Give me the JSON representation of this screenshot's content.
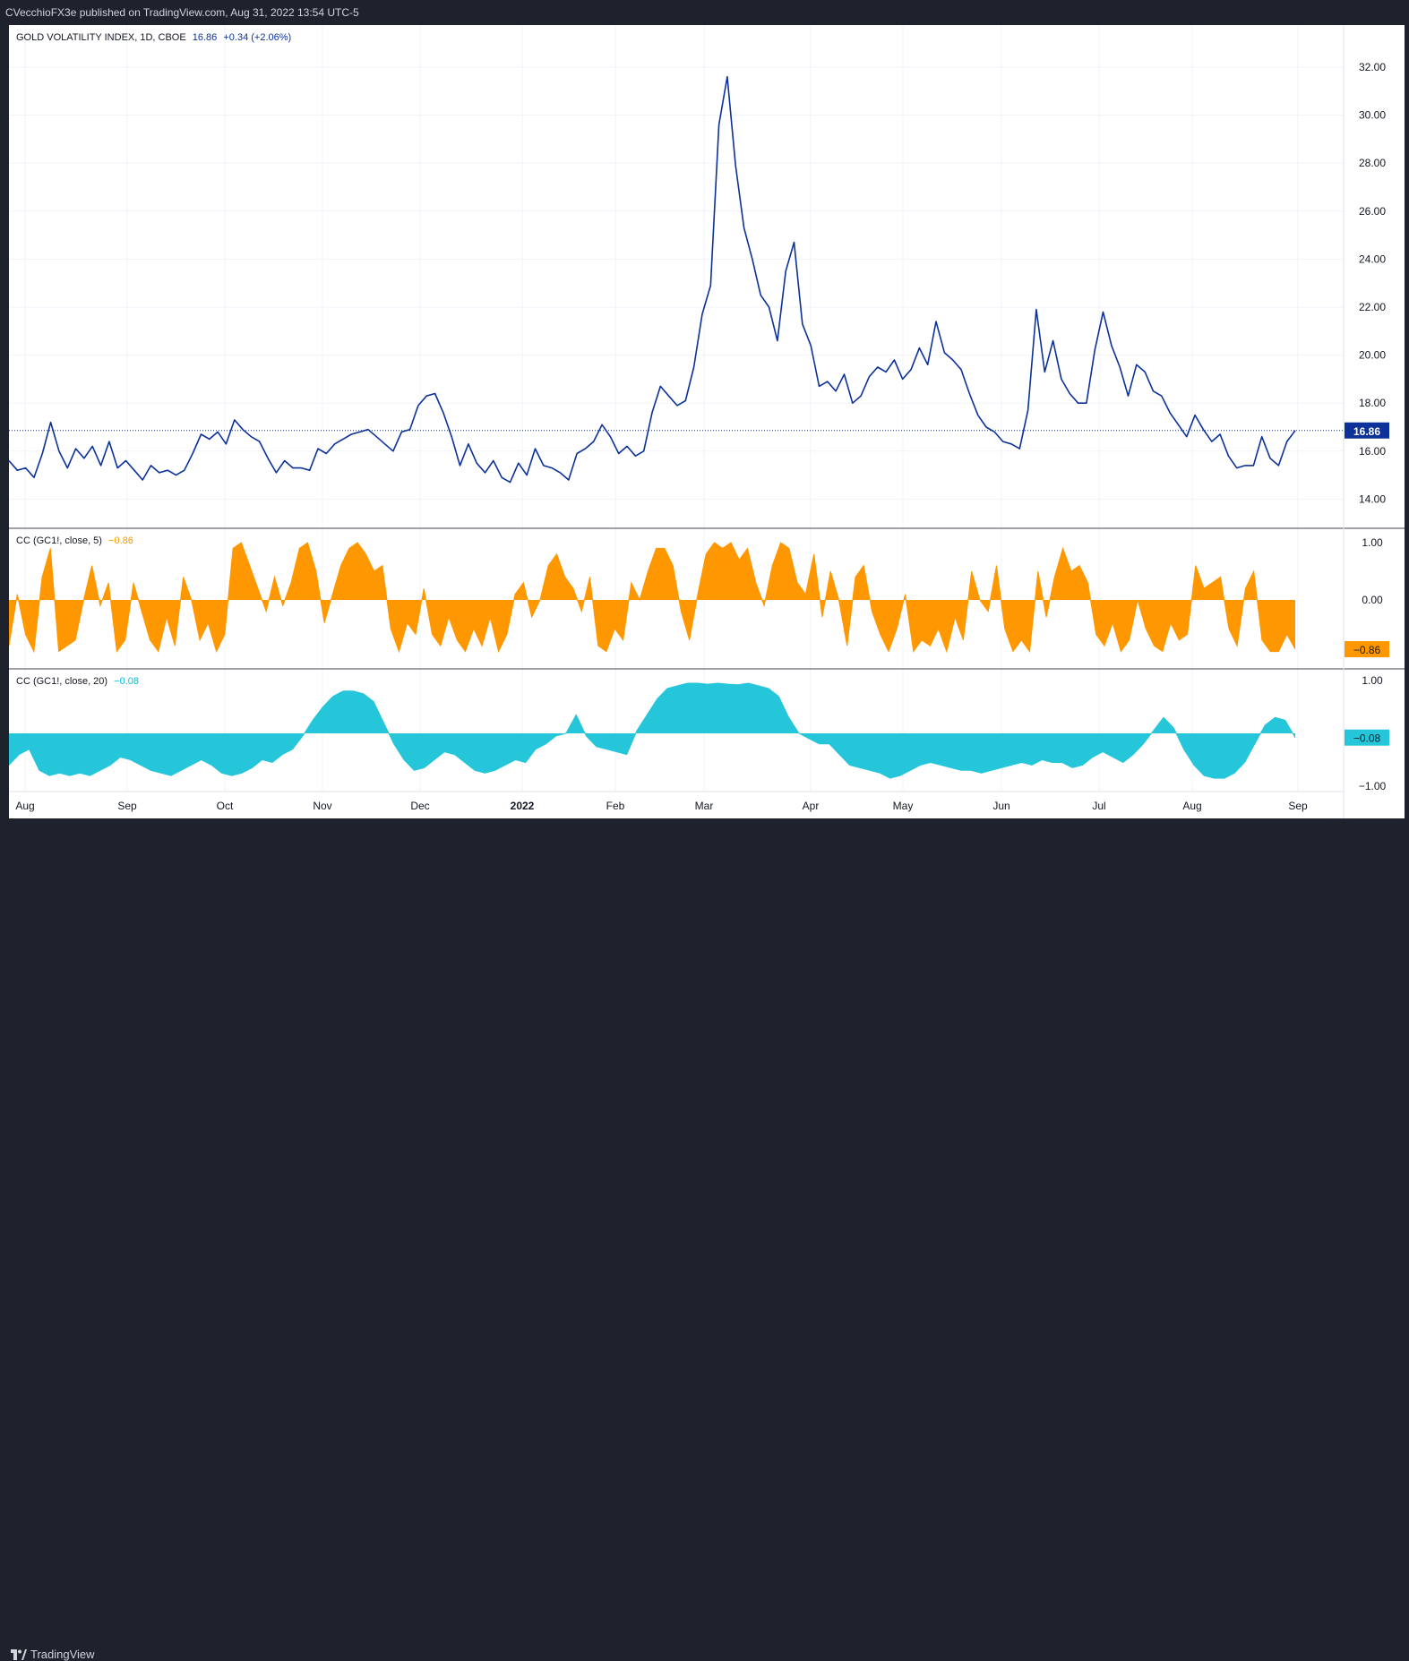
{
  "header": {
    "published": "CVecchioFX3e published on TradingView.com, Aug 31, 2022 13:54 UTC-5"
  },
  "footer": {
    "brand": "TradingView"
  },
  "colors": {
    "price": "#0c3299",
    "cc5": "#ff9800",
    "cc20": "#26c6da",
    "grid": "#f0f3fa",
    "background": "#ffffff"
  },
  "main_legend": {
    "name": "GOLD VOLATILITY INDEX, 1D, CBOE",
    "last": "16.86",
    "change": "+0.34 (+2.06%)"
  },
  "cc5_legend": {
    "name": "CC (GC1!, close, 5)",
    "value": "−0.86"
  },
  "cc20_legend": {
    "name": "CC (GC1!, close, 20)",
    "value": "−0.08"
  },
  "chart_data": [
    {
      "type": "line",
      "title": "GOLD VOLATILITY INDEX, 1D, CBOE",
      "ylim": [
        13,
        33
      ],
      "yticks": [
        "32.00",
        "30.00",
        "28.00",
        "26.00",
        "24.00",
        "22.00",
        "20.00",
        "18.00",
        "16.00",
        "14.00"
      ],
      "last_value_label": "16.86",
      "x_labels": [
        "Aug",
        "Sep",
        "Oct",
        "Nov",
        "Dec",
        "2022",
        "Feb",
        "Mar",
        "Apr",
        "May",
        "Jun",
        "Jul",
        "Aug",
        "Sep"
      ],
      "series": [
        {
          "values": [
            15.6,
            15.2,
            15.3,
            14.9,
            15.9,
            17.2,
            16.0,
            15.3,
            16.1,
            15.7,
            16.2,
            15.4,
            16.4,
            15.3,
            15.6,
            15.2,
            14.8,
            15.4,
            15.1,
            15.2,
            15.0,
            15.2,
            15.9,
            16.7,
            16.5,
            16.8,
            16.3,
            17.3,
            16.9,
            16.6,
            16.4,
            15.7,
            15.1,
            15.6,
            15.3,
            15.3,
            15.2,
            16.1,
            15.9,
            16.3,
            16.5,
            16.7,
            16.8,
            16.9,
            16.6,
            16.3,
            16.0,
            16.8,
            16.9,
            17.9,
            18.3,
            18.4,
            17.6,
            16.6,
            15.4,
            16.3,
            15.5,
            15.1,
            15.6,
            14.9,
            14.7,
            15.5,
            15.0,
            16.1,
            15.4,
            15.3,
            15.1,
            14.8,
            15.9,
            16.1,
            16.4,
            17.1,
            16.6,
            15.9,
            16.2,
            15.8,
            16.0,
            17.6,
            18.7,
            18.3,
            17.9,
            18.1,
            19.5,
            21.7,
            22.9,
            29.6,
            31.6,
            27.9,
            25.3,
            24.0,
            22.5,
            22.0,
            20.6,
            23.5,
            24.7,
            21.3,
            20.4,
            18.7,
            18.9,
            18.5,
            19.2,
            18.0,
            18.3,
            19.1,
            19.5,
            19.3,
            19.8,
            19.0,
            19.4,
            20.3,
            19.6,
            21.4,
            20.1,
            19.8,
            19.4,
            18.4,
            17.5,
            17.0,
            16.8,
            16.4,
            16.3,
            16.1,
            17.7,
            21.9,
            19.3,
            20.6,
            19.0,
            18.4,
            18.0,
            18.0,
            20.2,
            21.8,
            20.4,
            19.5,
            18.3,
            19.6,
            19.3,
            18.5,
            18.3,
            17.6,
            17.1,
            16.6,
            17.5,
            16.9,
            16.4,
            16.7,
            15.8,
            15.3,
            15.4,
            15.4,
            16.6,
            15.7,
            15.4,
            16.4,
            16.86
          ]
        }
      ]
    },
    {
      "type": "area",
      "title": "CC (GC1!, close, 5)",
      "ylim": [
        -1.15,
        1.15
      ],
      "yticks": [
        "1.00",
        "0.00"
      ],
      "last_value_label": "−0.86",
      "series": [
        {
          "values": [
            -0.8,
            0.1,
            -0.6,
            -0.9,
            0.4,
            0.9,
            -0.9,
            -0.8,
            -0.7,
            0.0,
            0.6,
            -0.1,
            0.3,
            -0.9,
            -0.7,
            0.3,
            -0.2,
            -0.7,
            -0.9,
            -0.3,
            -0.8,
            0.4,
            0.0,
            -0.7,
            -0.4,
            -0.9,
            -0.6,
            0.9,
            1.0,
            0.6,
            0.2,
            -0.2,
            0.4,
            -0.1,
            0.3,
            0.9,
            1.0,
            0.5,
            -0.4,
            0.1,
            0.6,
            0.9,
            1.0,
            0.8,
            0.5,
            0.6,
            -0.5,
            -0.9,
            -0.4,
            -0.6,
            0.2,
            -0.6,
            -0.8,
            -0.3,
            -0.7,
            -0.9,
            -0.5,
            -0.8,
            -0.3,
            -0.9,
            -0.6,
            0.1,
            0.3,
            -0.3,
            0.0,
            0.6,
            0.8,
            0.4,
            0.2,
            -0.2,
            0.4,
            -0.8,
            -0.9,
            -0.5,
            -0.7,
            0.3,
            0.0,
            0.5,
            0.9,
            0.9,
            0.6,
            -0.2,
            -0.7,
            0.1,
            0.8,
            1.0,
            0.9,
            1.0,
            0.7,
            0.9,
            0.3,
            -0.1,
            0.6,
            1.0,
            0.9,
            0.3,
            0.1,
            0.8,
            -0.3,
            0.5,
            0.0,
            -0.8,
            0.4,
            0.6,
            -0.2,
            -0.6,
            -0.9,
            -0.5,
            0.1,
            -0.9,
            -0.7,
            -0.8,
            -0.5,
            -0.9,
            -0.3,
            -0.7,
            0.5,
            0.0,
            -0.2,
            0.6,
            -0.5,
            -0.9,
            -0.7,
            -0.9,
            0.5,
            -0.3,
            0.4,
            0.9,
            0.5,
            0.6,
            0.3,
            -0.6,
            -0.8,
            -0.4,
            -0.9,
            -0.7,
            0.0,
            -0.5,
            -0.8,
            -0.9,
            -0.4,
            -0.7,
            -0.6,
            0.6,
            0.2,
            0.3,
            0.4,
            -0.5,
            -0.8,
            0.2,
            0.5,
            -0.7,
            -0.9,
            -0.9,
            -0.6,
            -0.86
          ]
        }
      ]
    },
    {
      "type": "area",
      "title": "CC (GC1!, close, 20)",
      "ylim": [
        -1.1,
        1.1
      ],
      "yticks": [
        "1.00",
        "−1.00"
      ],
      "last_value_label": "−0.08",
      "series": [
        {
          "values": [
            -0.6,
            -0.4,
            -0.3,
            -0.7,
            -0.8,
            -0.75,
            -0.8,
            -0.75,
            -0.8,
            -0.7,
            -0.6,
            -0.45,
            -0.5,
            -0.6,
            -0.7,
            -0.75,
            -0.8,
            -0.7,
            -0.6,
            -0.5,
            -0.6,
            -0.75,
            -0.8,
            -0.75,
            -0.65,
            -0.5,
            -0.55,
            -0.4,
            -0.3,
            -0.05,
            0.25,
            0.5,
            0.7,
            0.8,
            0.8,
            0.75,
            0.6,
            0.2,
            -0.2,
            -0.5,
            -0.7,
            -0.65,
            -0.5,
            -0.35,
            -0.4,
            -0.55,
            -0.7,
            -0.75,
            -0.7,
            -0.6,
            -0.5,
            -0.55,
            -0.3,
            -0.2,
            -0.05,
            0.0,
            0.35,
            -0.05,
            -0.25,
            -0.3,
            -0.35,
            -0.4,
            0.05,
            0.35,
            0.65,
            0.85,
            0.9,
            0.95,
            0.95,
            0.93,
            0.95,
            0.93,
            0.92,
            0.95,
            0.9,
            0.85,
            0.7,
            0.3,
            0.0,
            -0.1,
            -0.2,
            -0.2,
            -0.4,
            -0.6,
            -0.65,
            -0.7,
            -0.75,
            -0.85,
            -0.8,
            -0.7,
            -0.6,
            -0.55,
            -0.6,
            -0.65,
            -0.7,
            -0.7,
            -0.75,
            -0.7,
            -0.65,
            -0.6,
            -0.55,
            -0.6,
            -0.5,
            -0.55,
            -0.55,
            -0.65,
            -0.6,
            -0.45,
            -0.35,
            -0.45,
            -0.55,
            -0.4,
            -0.2,
            0.05,
            0.3,
            0.1,
            -0.3,
            -0.6,
            -0.8,
            -0.85,
            -0.85,
            -0.75,
            -0.55,
            -0.2,
            0.15,
            0.3,
            0.25,
            -0.08
          ]
        }
      ]
    }
  ]
}
